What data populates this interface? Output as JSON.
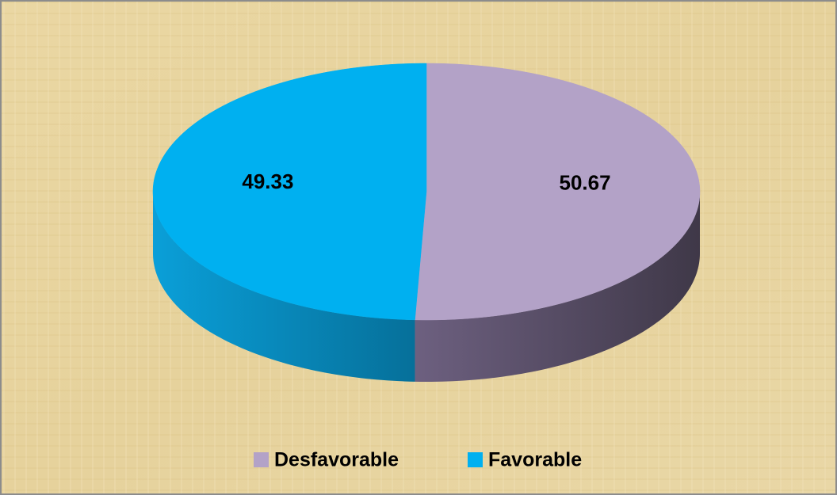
{
  "chart_data": {
    "type": "pie3d",
    "categories": [
      "Desfavorable",
      "Favorable"
    ],
    "values": [
      50.67,
      49.33
    ],
    "colors": [
      "#b3a2c7",
      "#00b0f0"
    ],
    "legend": "bottom"
  }
}
